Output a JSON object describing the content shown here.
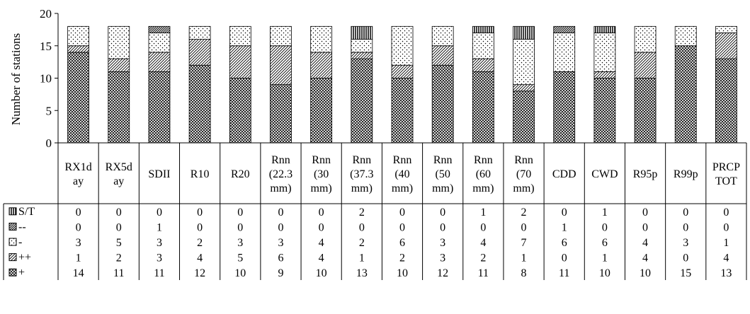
{
  "chart_data": {
    "type": "bar",
    "stacked": true,
    "ylabel": "Number of stations",
    "ylim": [
      0,
      20
    ],
    "yticks": [
      0,
      5,
      10,
      15,
      20
    ],
    "categories": [
      [
        "RX1d",
        "ay"
      ],
      [
        "RX5d",
        "ay"
      ],
      [
        "SDII"
      ],
      [
        "R10"
      ],
      [
        "R20"
      ],
      [
        "Rnn",
        "(22.3",
        "mm)"
      ],
      [
        "Rnn",
        "(30",
        "mm)"
      ],
      [
        "Rnn",
        "(37.3",
        "mm)"
      ],
      [
        "Rnn",
        "(40",
        "mm)"
      ],
      [
        "Rnn",
        "(50",
        "mm)"
      ],
      [
        "Rnn",
        "(60",
        "mm)"
      ],
      [
        "Rnn",
        "(70",
        "mm)"
      ],
      [
        "CDD"
      ],
      [
        "CWD"
      ],
      [
        "R95p"
      ],
      [
        "R99p"
      ],
      [
        "PRCP",
        "TOT"
      ]
    ],
    "series_bottom_to_top": [
      {
        "name": "+",
        "pattern": "crosshatch",
        "values": [
          14,
          11,
          11,
          12,
          10,
          9,
          10,
          13,
          10,
          12,
          11,
          8,
          11,
          10,
          10,
          15,
          13
        ]
      },
      {
        "name": "++",
        "pattern": "diagonal",
        "values": [
          1,
          2,
          3,
          4,
          5,
          6,
          4,
          1,
          2,
          3,
          2,
          1,
          0,
          1,
          4,
          0,
          4
        ]
      },
      {
        "name": "-",
        "pattern": "dots",
        "values": [
          3,
          5,
          3,
          2,
          3,
          3,
          4,
          2,
          6,
          3,
          4,
          7,
          6,
          6,
          4,
          3,
          1
        ]
      },
      {
        "name": "--",
        "pattern": "dense-diagonal",
        "values": [
          0,
          0,
          1,
          0,
          0,
          0,
          0,
          0,
          0,
          0,
          0,
          0,
          1,
          0,
          0,
          0,
          0
        ]
      },
      {
        "name": "S/T",
        "pattern": "vertical",
        "values": [
          0,
          0,
          0,
          0,
          0,
          0,
          0,
          2,
          0,
          0,
          1,
          2,
          0,
          1,
          0,
          0,
          0
        ]
      }
    ],
    "table_row_order": [
      "S/T",
      "--",
      "-",
      "++",
      "+"
    ]
  }
}
